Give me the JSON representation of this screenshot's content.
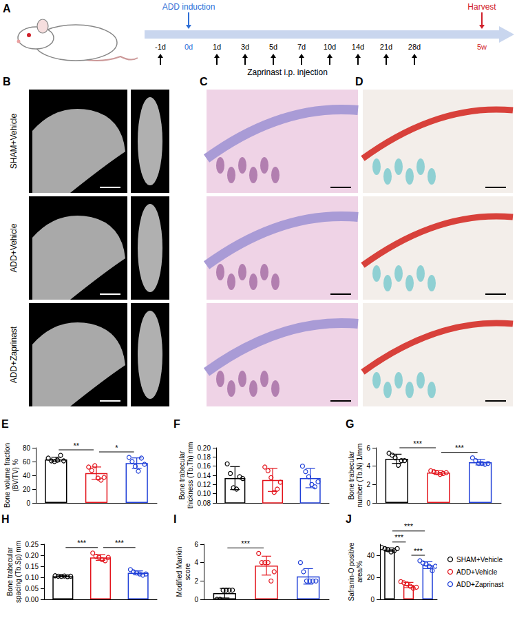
{
  "schematic": {
    "panel": "A",
    "induction": {
      "label": "ADD induction",
      "time": "0d"
    },
    "harvest": {
      "label": "Harvest",
      "time": "5w"
    },
    "injections": [
      "-1d",
      "1d",
      "3d",
      "5d",
      "7d",
      "10d",
      "14d",
      "21d",
      "28d"
    ],
    "caption": "Zaprinast i.p. injection"
  },
  "images": {
    "panels": [
      "B",
      "C",
      "D"
    ],
    "rows": [
      "SHAM+Vehicle",
      "ADD+Vehicle",
      "ADD+Zaprinast"
    ]
  },
  "chart_data": [
    {
      "type": "bar",
      "panel": "E",
      "ylabel": "Bone volume fraction (BV/TV) %",
      "categories": [
        "SHAM+Vehicle",
        "ADD+Vehicle",
        "ADD+Zaprinast"
      ],
      "colors": [
        "#000000",
        "#e3141c",
        "#1f3fd8"
      ],
      "values": [
        63.0,
        43.2,
        57.7
      ],
      "errors": [
        3.3,
        8.9,
        7.6
      ],
      "points": [
        [
          65,
          61,
          60,
          62,
          69,
          61
        ],
        [
          52,
          47,
          54,
          36,
          33,
          37
        ],
        [
          66,
          60,
          53,
          46,
          65,
          56
        ]
      ],
      "significance": [
        {
          "from": 0,
          "to": 1,
          "label": "**"
        },
        {
          "from": 1,
          "to": 2,
          "label": "*"
        }
      ],
      "ylim": [
        0,
        80
      ],
      "yticks": [
        0,
        20,
        40,
        60,
        80
      ],
      "grid": false,
      "tick_labels": "y",
      "marker": "circle"
    },
    {
      "type": "bar",
      "panel": "F",
      "ylabel": "Bone trabecular thickness (Tb.Th) mm",
      "categories": [
        "SHAM+Vehicle",
        "ADD+Vehicle",
        "ADD+Zaprinast"
      ],
      "colors": [
        "#000000",
        "#e3141c",
        "#1f3fd8"
      ],
      "values": [
        0.134,
        0.13,
        0.134
      ],
      "errors": [
        0.025,
        0.025,
        0.021
      ],
      "points": [
        [
          0.165,
          0.144,
          0.113,
          0.11,
          0.137,
          0.133
        ],
        [
          0.158,
          0.15,
          0.135,
          0.103,
          0.11,
          0.125
        ],
        [
          0.16,
          0.148,
          0.137,
          0.12,
          0.115,
          0.126
        ]
      ],
      "significance": [],
      "ylim": [
        0.08,
        0.2
      ],
      "yticks": [
        0.08,
        {
          "value": 0.1,
          "label": "0.10"
        },
        0.12,
        0.14,
        0.16,
        0.18,
        {
          "value": 0.2,
          "label": "0.20"
        }
      ],
      "grid": false,
      "tick_labels": "y",
      "marker": "circle"
    },
    {
      "type": "bar",
      "panel": "G",
      "ylabel": "Bone trabecular number (Tb.N) 1/mm",
      "categories": [
        "SHAM+Vehicle",
        "ADD+Vehicle",
        "ADD+Zaprinast"
      ],
      "colors": [
        "#000000",
        "#e3141c",
        "#1f3fd8"
      ],
      "values": [
        4.8,
        3.3,
        4.43
      ],
      "errors": [
        0.5,
        0.2,
        0.3
      ],
      "points": [
        [
          5.4,
          5.2,
          4.9,
          4.1,
          4.6,
          4.6
        ],
        [
          3.5,
          3.4,
          3.3,
          3.1,
          3.2,
          3.3
        ],
        [
          4.9,
          4.6,
          4.3,
          4.3,
          4.2,
          4.3
        ]
      ],
      "significance": [
        {
          "from": 0,
          "to": 1,
          "label": "***"
        },
        {
          "from": 1,
          "to": 2,
          "label": "***"
        }
      ],
      "ylim": [
        0,
        6
      ],
      "yticks": [
        0,
        2,
        4,
        6
      ],
      "grid": false,
      "tick_labels": "y",
      "marker": "circle"
    },
    {
      "type": "bar",
      "panel": "H",
      "ylabel": "Bone trabecular spacing (Tb.Sp) mm",
      "categories": [
        "SHAM+Vehicle",
        "ADD+Vehicle",
        "ADD+Zaprinast"
      ],
      "colors": [
        "#000000",
        "#e3141c",
        "#1f3fd8"
      ],
      "values": [
        0.105,
        0.19,
        0.12
      ],
      "errors": [
        0.002,
        0.013,
        0.009
      ],
      "points": [
        [
          0.107,
          0.105,
          0.104,
          0.106,
          0.103,
          0.105
        ],
        [
          0.21,
          0.195,
          0.19,
          0.18,
          0.175,
          0.19
        ],
        [
          0.135,
          0.125,
          0.12,
          0.115,
          0.11,
          0.115
        ]
      ],
      "significance": [
        {
          "from": 0,
          "to": 1,
          "label": "***"
        },
        {
          "from": 1,
          "to": 2,
          "label": "***"
        }
      ],
      "ylim": [
        0,
        0.25
      ],
      "yticks": [
        {
          "value": 0,
          "label": "0.00"
        },
        0.05,
        {
          "value": 0.1,
          "label": "0.10"
        },
        0.15,
        {
          "value": 0.2,
          "label": "0.20"
        },
        0.25
      ],
      "grid": false,
      "tick_labels": "y",
      "marker": "circle"
    },
    {
      "type": "bar",
      "panel": "I",
      "ylabel": "Modified Mankin score",
      "categories": [
        "SHAM+Vehicle",
        "ADD+Vehicle",
        "ADD+Zaprinast"
      ],
      "colors": [
        "#000000",
        "#e3141c",
        "#1f3fd8"
      ],
      "values": [
        0.67,
        3.67,
        2.5
      ],
      "errors": [
        0.52,
        1.03,
        0.84
      ],
      "points": [
        [
          0,
          0,
          1,
          1,
          1,
          1
        ],
        [
          5,
          4,
          4,
          4,
          2,
          3
        ],
        [
          4,
          3,
          2,
          2,
          2,
          2
        ]
      ],
      "significance": [
        {
          "from": 0,
          "to": 1,
          "label": "***"
        }
      ],
      "ylim": [
        0,
        6
      ],
      "yticks": [
        0,
        2,
        4,
        6
      ],
      "grid": false,
      "tick_labels": "y",
      "marker": "circle"
    },
    {
      "type": "bar",
      "panel": "J",
      "ylabel": "Safranin-O positive area/%",
      "categories": [
        "SHAM+Vehicle",
        "ADD+Vehicle",
        "ADD+Zaprinast"
      ],
      "colors": [
        "#000000",
        "#e3141c",
        "#1f3fd8"
      ],
      "values": [
        45.2,
        13.0,
        31.0
      ],
      "errors": [
        1.5,
        2.4,
        3.1
      ],
      "points": [
        [
          47,
          46,
          45,
          43,
          44,
          46
        ],
        [
          16,
          15,
          14,
          12,
          10,
          11
        ],
        [
          35,
          33,
          32,
          30,
          26,
          30
        ]
      ],
      "significance": [
        {
          "from": 0,
          "to": 1,
          "label": "***"
        },
        {
          "from": 1,
          "to": 2,
          "label": "***"
        },
        {
          "from": 0,
          "to": 2,
          "label": "***"
        }
      ],
      "ylim": [
        0,
        50
      ],
      "yticks": [
        0,
        20,
        40
      ],
      "grid": false,
      "tick_labels": "y",
      "marker": "circle",
      "legend": "right"
    }
  ]
}
